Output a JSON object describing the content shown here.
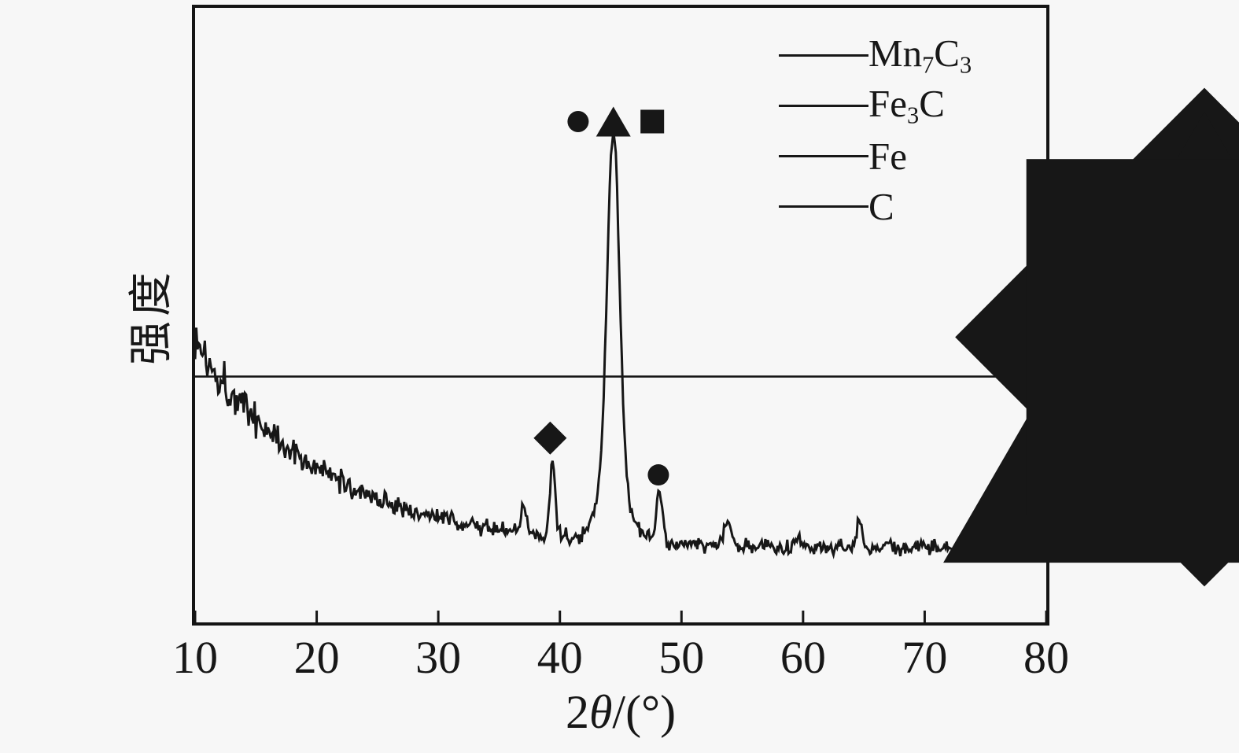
{
  "colors": {
    "ink": "#171717",
    "background": "#f7f7f7"
  },
  "ylabel": "强度",
  "xlabel": {
    "prefix": "2",
    "theta": "θ",
    "suffix": "/(°)"
  },
  "legend": {
    "position": "top-right",
    "items": [
      {
        "symbol": "diamond",
        "phase": "Mn7C3",
        "label_segments": [
          {
            "t": "Mn"
          },
          {
            "t": "7",
            "sub": true
          },
          {
            "t": "C"
          },
          {
            "t": "3",
            "sub": true
          }
        ]
      },
      {
        "symbol": "circle",
        "phase": "Fe3C",
        "label_segments": [
          {
            "t": "Fe"
          },
          {
            "t": "3",
            "sub": true
          },
          {
            "t": "C"
          }
        ]
      },
      {
        "symbol": "triangle",
        "phase": "Fe",
        "label_segments": [
          {
            "t": "Fe"
          }
        ]
      },
      {
        "symbol": "square",
        "phase": "C",
        "label_segments": [
          {
            "t": "C"
          }
        ]
      }
    ]
  },
  "chart_data": {
    "type": "line",
    "title": "",
    "xlabel": "2θ/(°)",
    "ylabel": "强度 (intensity, arbitrary units, no y ticks)",
    "xlim": [
      10,
      80
    ],
    "x_ticks": [
      10,
      20,
      30,
      40,
      50,
      60,
      70,
      80
    ],
    "grid": false,
    "legend_position": "top-right",
    "series_name": "XRD pattern (noisy trace)",
    "intensity_units": "percent of plot height, 0 = bottom axis, 100 = top border",
    "baseline": {
      "flat": 12,
      "amp": 34,
      "tau": 10.5
    },
    "noise": {
      "seed": 1337,
      "base": 1.3,
      "amp": 3.1,
      "tau": 9,
      "step": 0.1,
      "gain": 1.15
    },
    "peaks": [
      {
        "c": 37.0,
        "h": 4.5,
        "s": 0.2,
        "phase": ""
      },
      {
        "c": 39.4,
        "h": 12.0,
        "s": 0.22,
        "phase": "Mn7C3"
      },
      {
        "c": 44.4,
        "h": 58.0,
        "s": 0.5,
        "phase": "Fe / Fe3C / C (main peak)"
      },
      {
        "c": 44.4,
        "h": 9.0,
        "s": 1.2,
        "phase": "main peak broad base"
      },
      {
        "c": 48.2,
        "h": 8.0,
        "s": 0.27,
        "phase": "Fe3C"
      },
      {
        "c": 53.8,
        "h": 3.5,
        "s": 0.3,
        "phase": ""
      },
      {
        "c": 59.5,
        "h": 1.8,
        "s": 0.3,
        "phase": ""
      },
      {
        "c": 64.6,
        "h": 4.5,
        "s": 0.22,
        "phase": ""
      },
      {
        "c": 74.0,
        "h": 1.8,
        "s": 0.25,
        "phase": ""
      },
      {
        "c": 79.85,
        "h": 8.0,
        "s": 0.1,
        "phase": "edge spike"
      }
    ],
    "hline_intensity": 40,
    "annotations": [
      {
        "symbol": "diamond",
        "x": 39.2,
        "y": 30.0,
        "phase": "Mn7C3"
      },
      {
        "symbol": "circle",
        "x": 41.5,
        "y": 81.5,
        "phase": "Fe3C"
      },
      {
        "symbol": "triangle",
        "x": 44.4,
        "y": 81.5,
        "phase": "Fe"
      },
      {
        "symbol": "square",
        "x": 47.6,
        "y": 81.5,
        "phase": "C"
      },
      {
        "symbol": "circle",
        "x": 48.1,
        "y": 24.0,
        "phase": "Fe3C"
      }
    ]
  }
}
